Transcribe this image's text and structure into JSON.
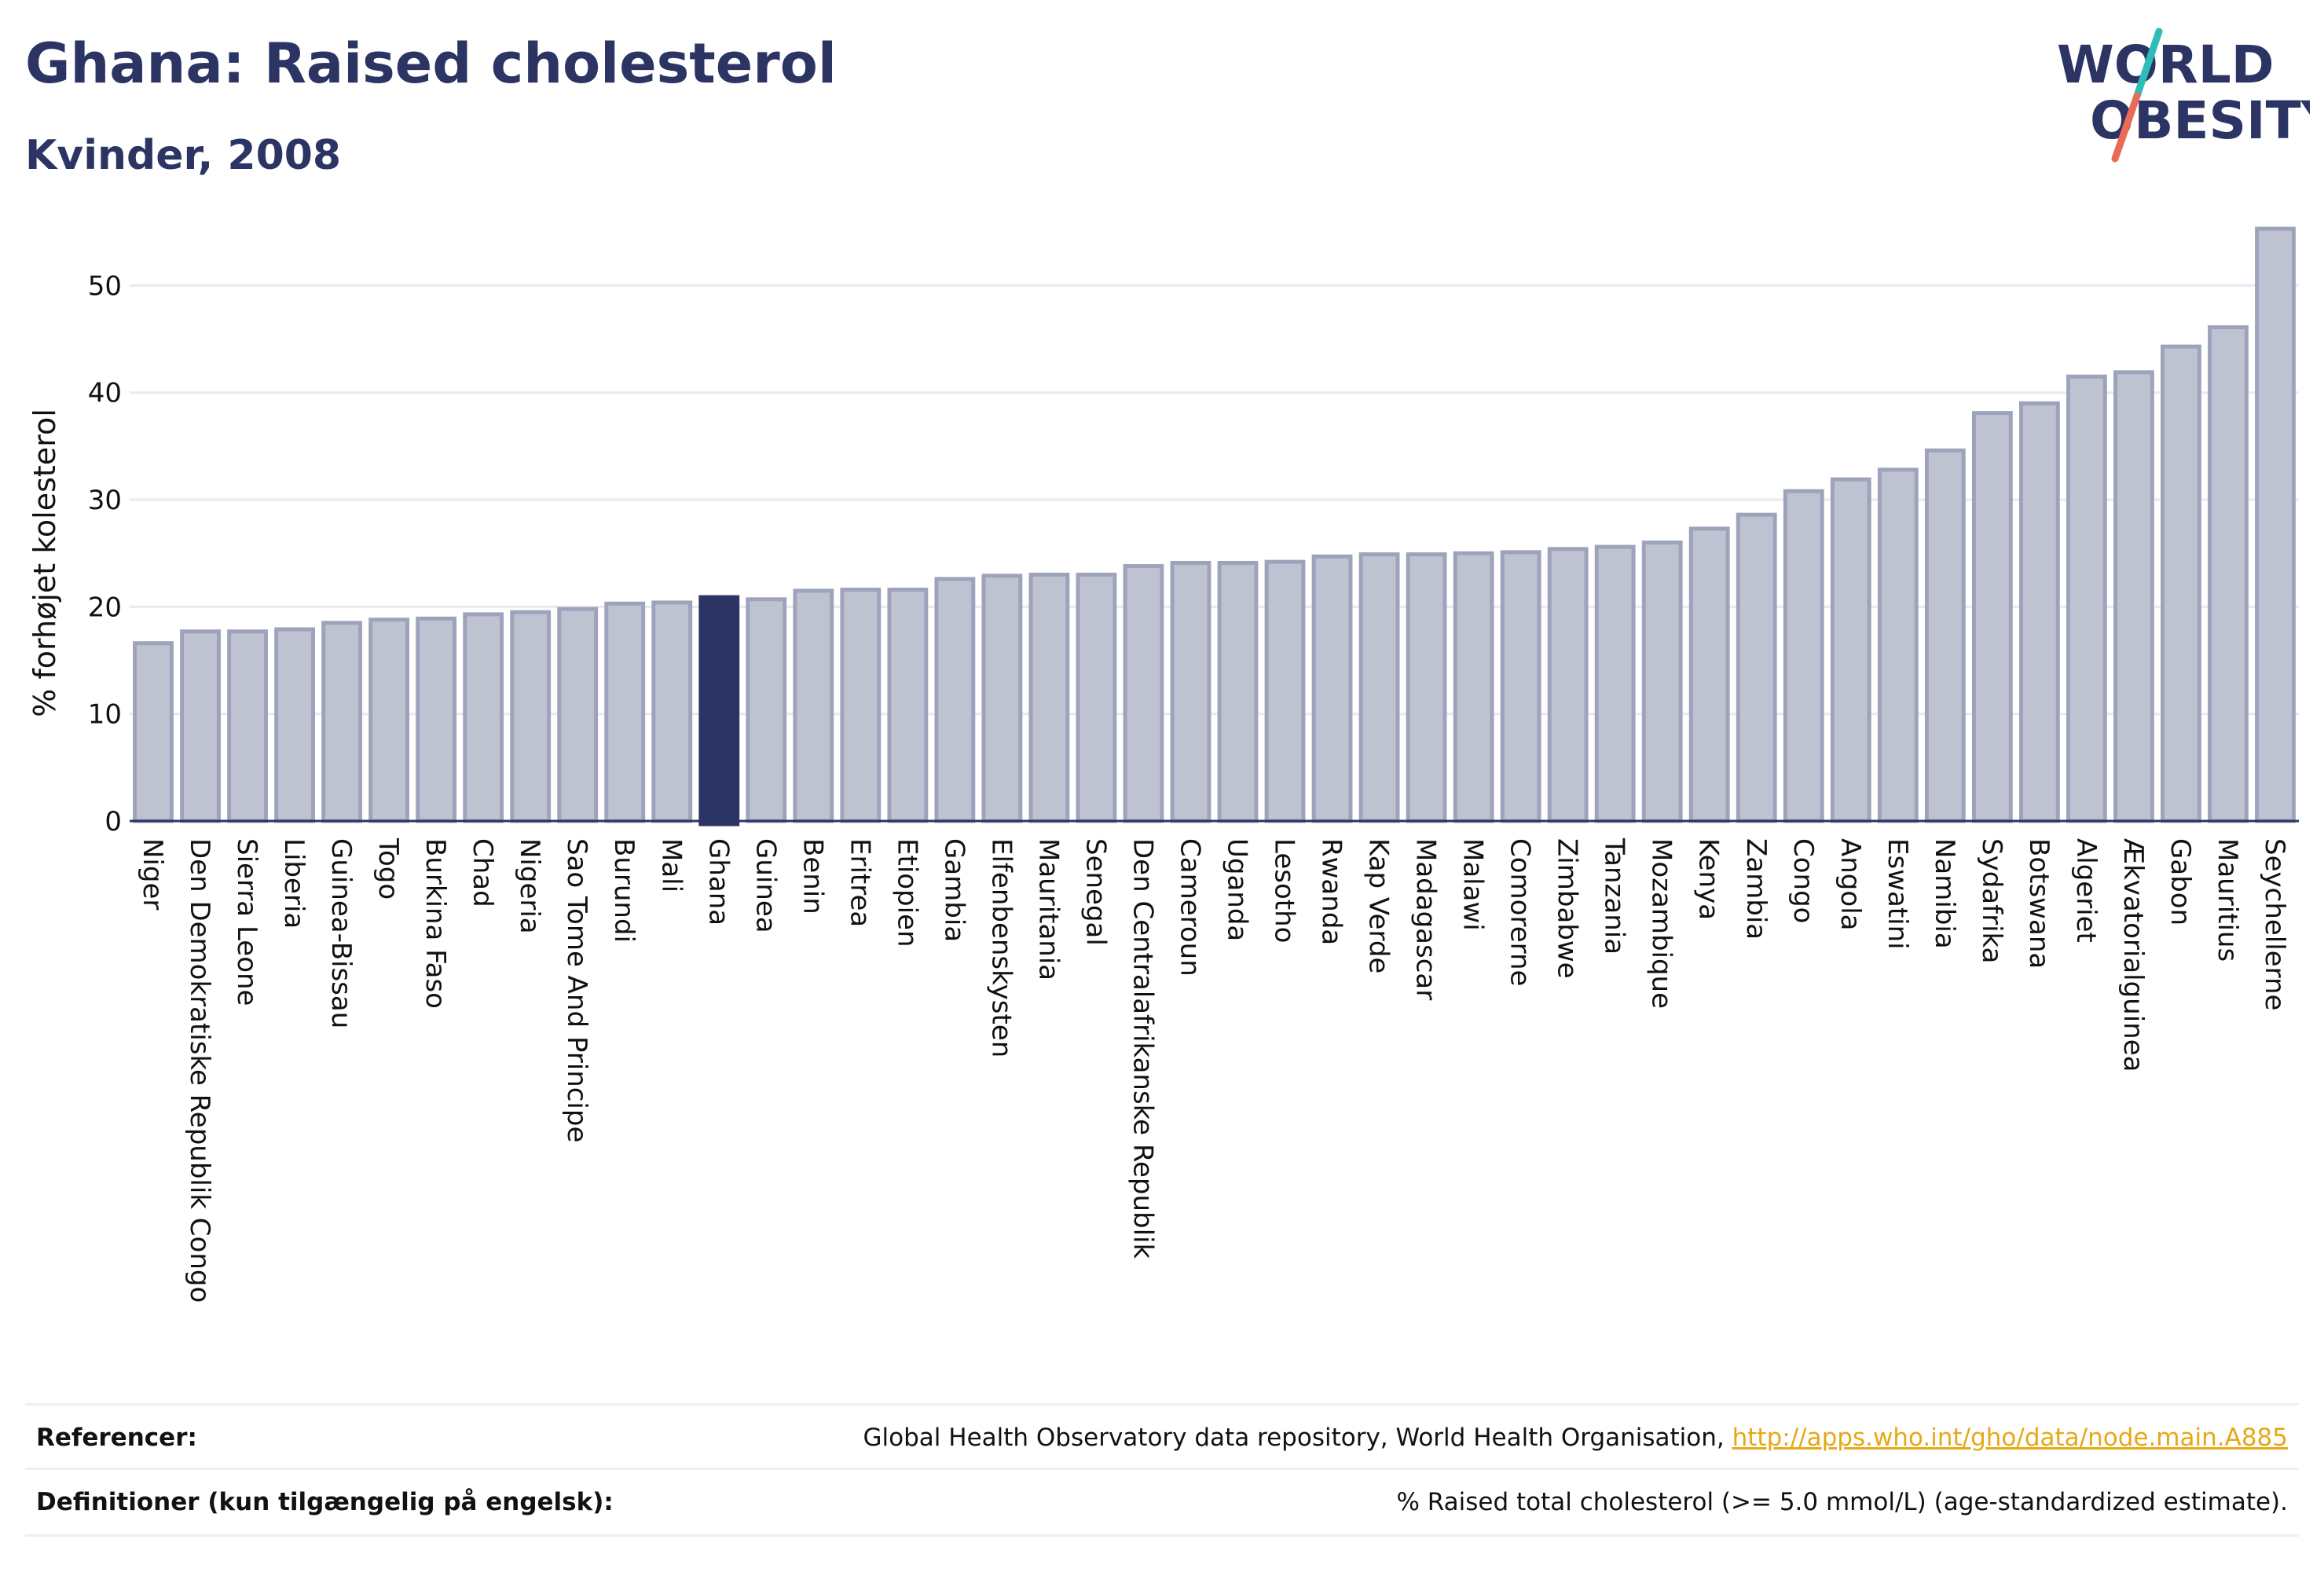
{
  "header": {
    "title": "Ghana: Raised cholesterol",
    "subtitle": "Kvinder, 2008",
    "logo_text_1": "WORLD",
    "logo_text_2": "OBESITY"
  },
  "colors": {
    "bar": "#bfc3d1",
    "bar_edge": "#9da3bb",
    "highlight": "#2b3462",
    "grid": "#e8eaef",
    "axis": "#2b3462",
    "logo_teal": "#2ebcb8",
    "logo_coral": "#ec6b56",
    "link": "#e6a817"
  },
  "chart_data": {
    "type": "bar",
    "title": "Ghana: Raised cholesterol",
    "subtitle": "Kvinder, 2008",
    "ylabel": "% forhøjet kolesterol",
    "xlabel": "",
    "ylim": [
      0,
      57
    ],
    "yticks": [
      0,
      10,
      20,
      30,
      40,
      50
    ],
    "grid": true,
    "highlight": "Ghana",
    "categories": [
      "Niger",
      "Den Demokratiske Republik Congo",
      "Sierra Leone",
      "Liberia",
      "Guinea-Bissau",
      "Togo",
      "Burkina Faso",
      "Chad",
      "Nigeria",
      "Sao Tome And Principe",
      "Burundi",
      "Mali",
      "Ghana",
      "Guinea",
      "Benin",
      "Eritrea",
      "Etiopien",
      "Gambia",
      "Elfenbenskysten",
      "Mauritania",
      "Senegal",
      "Den Centralafrikanske Republik",
      "Cameroun",
      "Uganda",
      "Lesotho",
      "Rwanda",
      "Kap Verde",
      "Madagascar",
      "Malawi",
      "Comorerne",
      "Zimbabwe",
      "Tanzania",
      "Mozambique",
      "Kenya",
      "Zambia",
      "Congo",
      "Angola",
      "Eswatini",
      "Namibia",
      "Sydafrika",
      "Botswana",
      "Algeriet",
      "Ækvatorialguinea",
      "Gabon",
      "Mauritius",
      "Seychellerne"
    ],
    "values": [
      16.6,
      17.7,
      17.7,
      17.9,
      18.5,
      18.8,
      18.9,
      19.3,
      19.5,
      19.8,
      20.3,
      20.4,
      20.9,
      20.7,
      21.5,
      21.6,
      21.6,
      22.6,
      22.9,
      23.0,
      23.0,
      23.8,
      24.1,
      24.1,
      24.2,
      24.7,
      24.9,
      24.9,
      25.0,
      25.1,
      25.4,
      25.6,
      26.0,
      27.3,
      28.6,
      30.8,
      31.9,
      32.8,
      34.6,
      38.1,
      39.0,
      41.5,
      41.9,
      44.3,
      46.1,
      55.3
    ]
  },
  "footer": {
    "references_label": "Referencer:",
    "references_text": "Global Health Observatory data repository, World Health Organisation, ",
    "references_link": "http://apps.who.int/gho/data/node.main.A885",
    "definitions_label": "Definitioner (kun tilgængelig på engelsk):",
    "definitions_text": "% Raised total cholesterol (>= 5.0 mmol/L) (age-standardized estimate)."
  }
}
